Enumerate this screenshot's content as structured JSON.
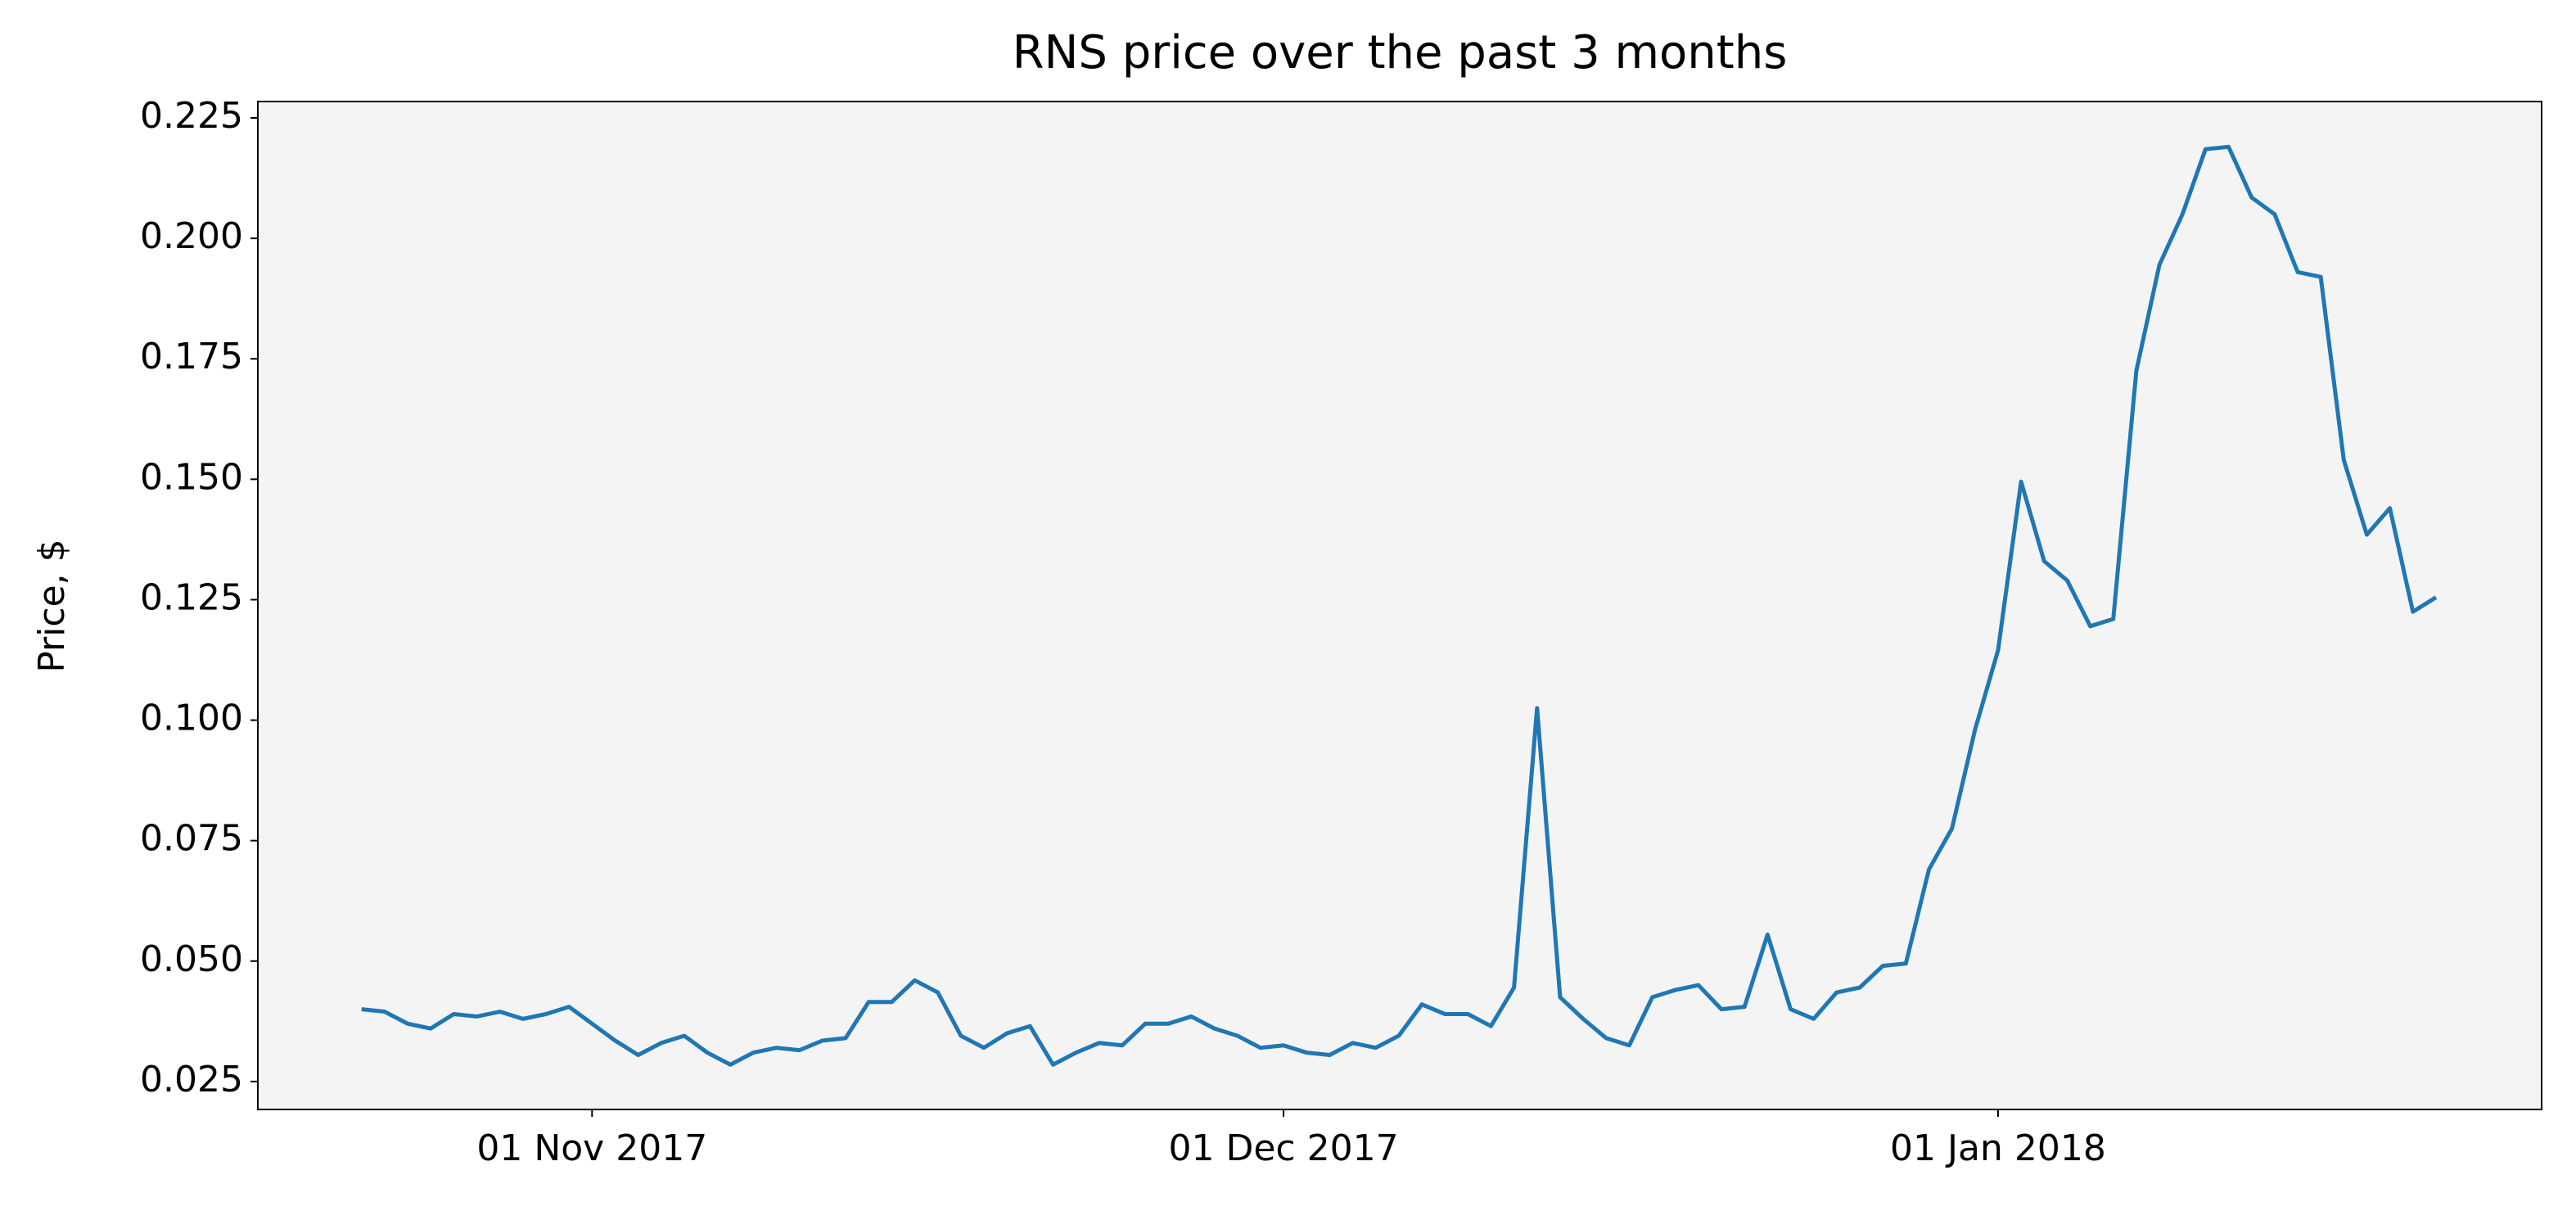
{
  "chart_data": {
    "type": "line",
    "title": "RNS price over the past 3 months",
    "y_label": "Price, $",
    "x": [
      "2017-10-22",
      "2017-10-23",
      "2017-10-24",
      "2017-10-25",
      "2017-10-26",
      "2017-10-27",
      "2017-10-28",
      "2017-10-29",
      "2017-10-30",
      "2017-10-31",
      "2017-11-01",
      "2017-11-02",
      "2017-11-03",
      "2017-11-04",
      "2017-11-05",
      "2017-11-06",
      "2017-11-07",
      "2017-11-08",
      "2017-11-09",
      "2017-11-10",
      "2017-11-11",
      "2017-11-12",
      "2017-11-13",
      "2017-11-14",
      "2017-11-15",
      "2017-11-16",
      "2017-11-17",
      "2017-11-18",
      "2017-11-19",
      "2017-11-20",
      "2017-11-21",
      "2017-11-22",
      "2017-11-23",
      "2017-11-24",
      "2017-11-25",
      "2017-11-26",
      "2017-11-27",
      "2017-11-28",
      "2017-11-29",
      "2017-11-30",
      "2017-12-01",
      "2017-12-02",
      "2017-12-03",
      "2017-12-04",
      "2017-12-05",
      "2017-12-06",
      "2017-12-07",
      "2017-12-08",
      "2017-12-09",
      "2017-12-10",
      "2017-12-11",
      "2017-12-12",
      "2017-12-13",
      "2017-12-14",
      "2017-12-15",
      "2017-12-16",
      "2017-12-17",
      "2017-12-18",
      "2017-12-19",
      "2017-12-20",
      "2017-12-21",
      "2017-12-22",
      "2017-12-23",
      "2017-12-24",
      "2017-12-25",
      "2017-12-26",
      "2017-12-27",
      "2017-12-28",
      "2017-12-29",
      "2017-12-30",
      "2017-12-31",
      "2018-01-01",
      "2018-01-02",
      "2018-01-03",
      "2018-01-04",
      "2018-01-05",
      "2018-01-06",
      "2018-01-07",
      "2018-01-08",
      "2018-01-09",
      "2018-01-10",
      "2018-01-11",
      "2018-01-12",
      "2018-01-13",
      "2018-01-14",
      "2018-01-15",
      "2018-01-16",
      "2018-01-17",
      "2018-01-18",
      "2018-01-19",
      "2018-01-20"
    ],
    "series": [
      {
        "color": "#1f77b4",
        "values": [
          0.04,
          0.0395,
          0.037,
          0.036,
          0.039,
          0.0385,
          0.0395,
          0.038,
          0.039,
          0.0405,
          0.037,
          0.0335,
          0.0305,
          0.033,
          0.0345,
          0.031,
          0.0285,
          0.031,
          0.032,
          0.0315,
          0.0335,
          0.034,
          0.0415,
          0.0415,
          0.046,
          0.0435,
          0.0345,
          0.032,
          0.035,
          0.0365,
          0.0285,
          0.031,
          0.033,
          0.0325,
          0.037,
          0.037,
          0.0385,
          0.036,
          0.0345,
          0.032,
          0.0325,
          0.031,
          0.0305,
          0.033,
          0.032,
          0.0345,
          0.041,
          0.039,
          0.039,
          0.0365,
          0.0445,
          0.1025,
          0.0425,
          0.038,
          0.034,
          0.0325,
          0.0425,
          0.044,
          0.045,
          0.04,
          0.0405,
          0.0555,
          0.04,
          0.038,
          0.0435,
          0.0445,
          0.049,
          0.0495,
          0.069,
          0.0775,
          0.098,
          0.1145,
          0.1495,
          0.133,
          0.129,
          0.1195,
          0.121,
          0.1725,
          0.1945,
          0.205,
          0.2185,
          0.219,
          0.2085,
          0.205,
          0.193,
          0.192,
          0.154,
          0.1385,
          0.144,
          0.1225,
          0.1255
        ]
      }
    ],
    "xlim": [
      "2017-10-17T12:00:00Z",
      "2018-01-24T14:00:00Z"
    ],
    "xticks": [
      {
        "value": "2017-11-01",
        "label": "01 Nov 2017"
      },
      {
        "value": "2017-12-01",
        "label": "01 Dec 2017"
      },
      {
        "value": "2018-01-01",
        "label": "01 Jan 2018"
      }
    ],
    "ylim": [
      0.0192,
      0.2284
    ],
    "yticks": [
      0.025,
      {
        "value": 0.05,
        "label": "0.050"
      },
      0.075,
      {
        "value": 0.1,
        "label": "0.100"
      },
      0.125,
      {
        "value": 0.15,
        "label": "0.150"
      },
      0.175,
      {
        "value": 0.2,
        "label": "0.200"
      },
      0.225
    ],
    "background": "#f4f4f4"
  }
}
